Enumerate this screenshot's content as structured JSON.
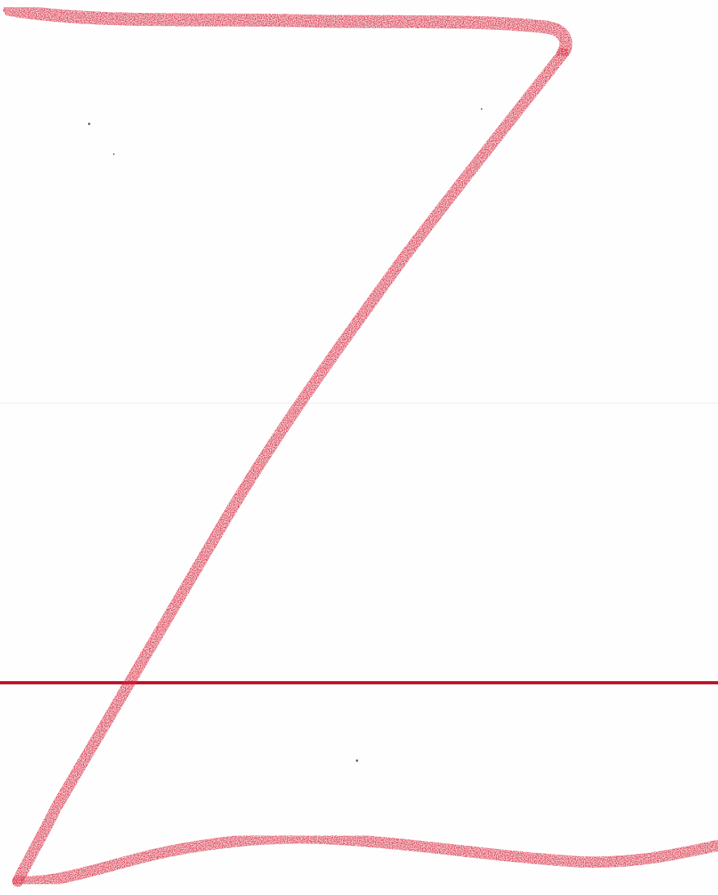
{
  "scene": {
    "letter": "Z",
    "ink_color": "#d8283e",
    "ink_light": "#f06a80",
    "baseline_color": "#c0142a",
    "fold_line_color": "#ececec",
    "paper_color": "#fefefe"
  }
}
